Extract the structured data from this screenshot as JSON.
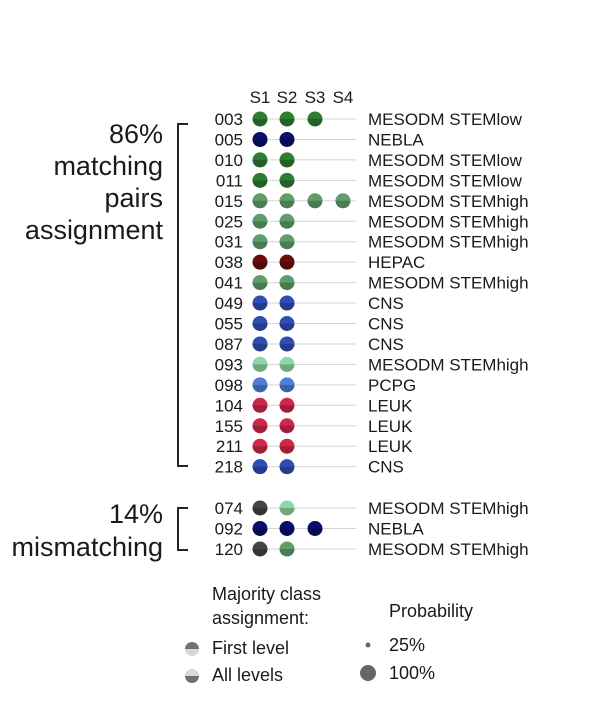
{
  "columns": [
    "S1",
    "S2",
    "S3",
    "S4"
  ],
  "group_matching": {
    "percent": "86%",
    "line1": "matching",
    "line2": "pairs",
    "line3": "assignment"
  },
  "group_mismatching": {
    "percent": "14%",
    "line1": "mismatching"
  },
  "colors": {
    "green_dark": "#2e7d32",
    "green_mid": "#5f9e6b",
    "green_light": "#8ed6a4",
    "navy": "#0a0f6b",
    "blue": "#2f4db2",
    "blue_light": "#4f7fd6",
    "maroon": "#6b0a0a",
    "red": "#d0284a",
    "grey_dark": "#444444"
  },
  "rows_matching": [
    {
      "id": "003",
      "label": "MESODM STEMlow",
      "samples": [
        "green_dark",
        "green_dark",
        "green_dark",
        null
      ]
    },
    {
      "id": "005",
      "label": "NEBLA",
      "samples": [
        "navy",
        "navy",
        null,
        null
      ]
    },
    {
      "id": "010",
      "label": "MESODM STEMlow",
      "samples": [
        "green_dark",
        "green_dark",
        null,
        null
      ]
    },
    {
      "id": "011",
      "label": "MESODM STEMlow",
      "samples": [
        "green_dark",
        "green_dark",
        null,
        null
      ]
    },
    {
      "id": "015",
      "label": "MESODM STEMhigh",
      "samples": [
        "green_mid",
        "green_mid",
        "green_mid",
        "green_mid"
      ]
    },
    {
      "id": "025",
      "label": "MESODM STEMhigh",
      "samples": [
        "green_mid",
        "green_mid",
        null,
        null
      ]
    },
    {
      "id": "031",
      "label": "MESODM STEMhigh",
      "samples": [
        "green_mid",
        "green_mid",
        null,
        null
      ]
    },
    {
      "id": "038",
      "label": "HEPAC",
      "samples": [
        "maroon",
        "maroon",
        null,
        null
      ]
    },
    {
      "id": "041",
      "label": "MESODM STEMhigh",
      "samples": [
        "green_mid",
        "green_mid",
        null,
        null
      ]
    },
    {
      "id": "049",
      "label": "CNS",
      "samples": [
        "blue",
        "blue",
        null,
        null
      ]
    },
    {
      "id": "055",
      "label": "CNS",
      "samples": [
        "blue",
        "blue",
        null,
        null
      ]
    },
    {
      "id": "087",
      "label": "CNS",
      "samples": [
        "blue",
        "blue",
        null,
        null
      ]
    },
    {
      "id": "093",
      "label": "MESODM STEMhigh",
      "samples": [
        "green_light",
        "green_light",
        null,
        null
      ]
    },
    {
      "id": "098",
      "label": "PCPG",
      "samples": [
        "blue_light",
        "blue_light",
        null,
        null
      ]
    },
    {
      "id": "104",
      "label": "LEUK",
      "samples": [
        "red",
        "red",
        null,
        null
      ]
    },
    {
      "id": "155",
      "label": "LEUK",
      "samples": [
        "red",
        "red",
        null,
        null
      ]
    },
    {
      "id": "211",
      "label": "LEUK",
      "samples": [
        "red",
        "red",
        null,
        null
      ]
    },
    {
      "id": "218",
      "label": "CNS",
      "samples": [
        "blue",
        "blue",
        null,
        null
      ]
    }
  ],
  "rows_mismatching": [
    {
      "id": "074",
      "label": "MESODM STEMhigh",
      "samples": [
        "grey_dark",
        "green_light",
        null,
        null
      ]
    },
    {
      "id": "092",
      "label": "NEBLA",
      "samples": [
        "navy",
        "navy",
        "navy",
        null
      ]
    },
    {
      "id": "120",
      "label": "MESODM STEMhigh",
      "samples": [
        "grey_dark",
        "green_mid",
        null,
        null
      ]
    }
  ],
  "legend": {
    "majority_title_1": "Majority class",
    "majority_title_2": "assignment:",
    "first_level": "First level",
    "all_levels": "All levels",
    "probability_title": "Probability",
    "p25": "25%",
    "p100": "100%"
  }
}
